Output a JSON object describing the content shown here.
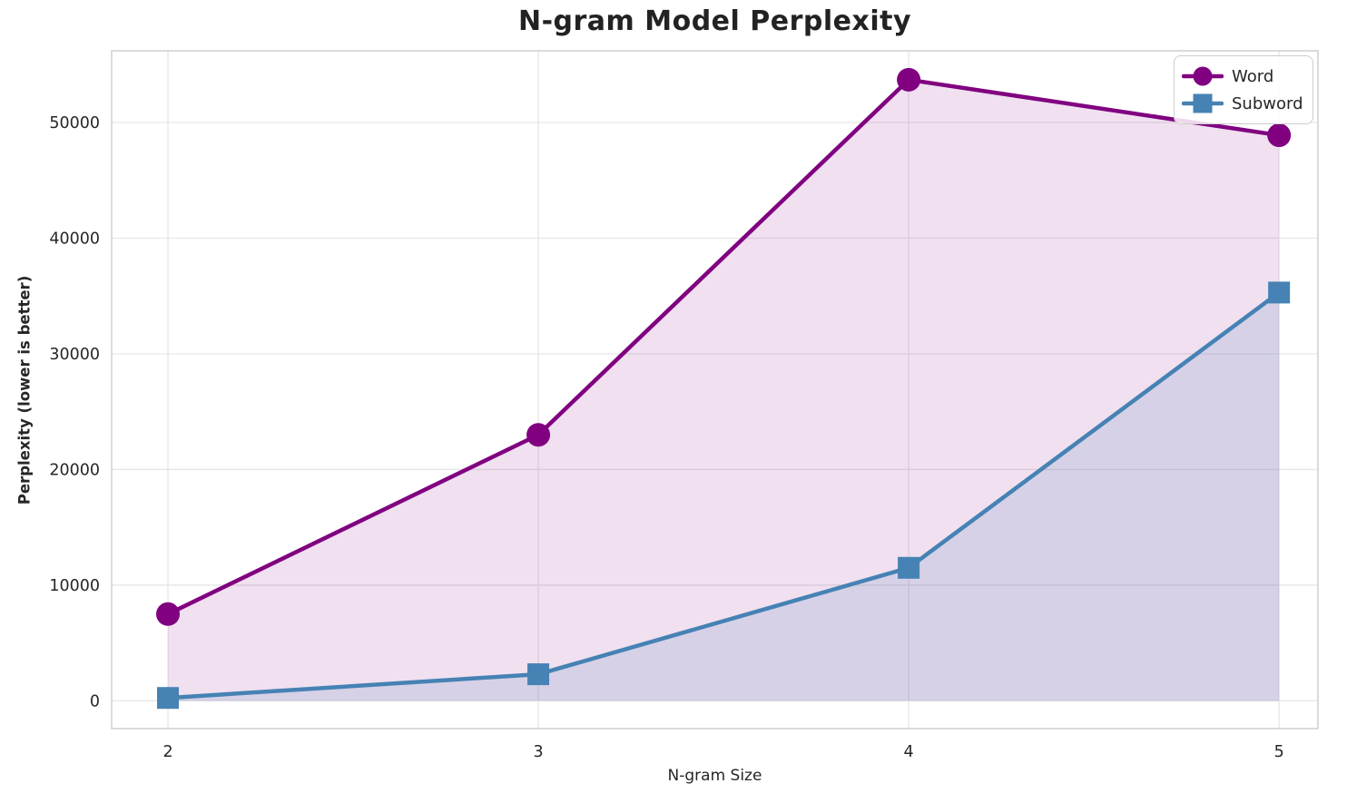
{
  "chart_data": {
    "type": "line",
    "title": "N-gram Model Perplexity",
    "xlabel": "N-gram Size",
    "ylabel": "Perplexity (lower is better)",
    "x": [
      2,
      3,
      4,
      5
    ],
    "series": [
      {
        "name": "Word",
        "marker": "circle",
        "color": "#800080",
        "fill_color": "rgba(128,0,128,0.12)",
        "values": [
          7500,
          23000,
          53700,
          48900
        ]
      },
      {
        "name": "Subword",
        "marker": "square",
        "color": "#4682B4",
        "fill_color": "rgba(70,130,180,0.15)",
        "values": [
          250,
          2300,
          11500,
          35300
        ]
      }
    ],
    "area_fill_to_zero": true,
    "xtick_labels": [
      "2",
      "3",
      "4",
      "5"
    ],
    "xtick_values": [
      2,
      3,
      4,
      5
    ],
    "ytick_labels": [
      "0",
      "10000",
      "20000",
      "30000",
      "40000",
      "50000"
    ],
    "ytick_values": [
      0,
      10000,
      20000,
      30000,
      40000,
      50000
    ],
    "xlim": [
      1.848,
      5.105
    ],
    "ylim": [
      -2400,
      56200
    ],
    "grid": true,
    "grid_color": "#e6e6e6",
    "spine_color": "#d2d2d2",
    "text_color": "#262626",
    "legend_position": "upper right",
    "legend_items": [
      "Word",
      "Subword"
    ]
  }
}
